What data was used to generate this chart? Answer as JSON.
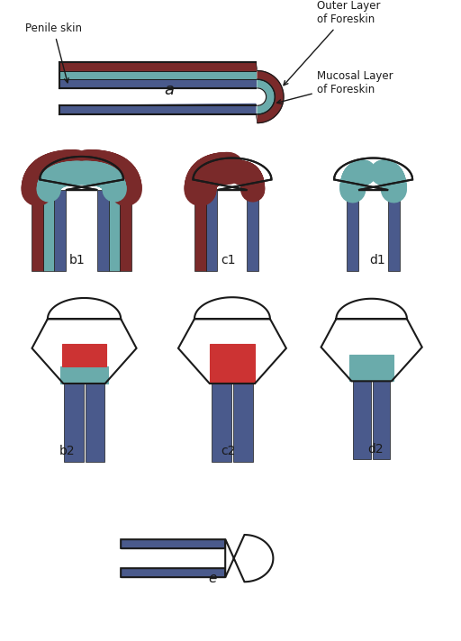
{
  "bg_color": "#ffffff",
  "border_color": "#1a1a1a",
  "blue": "#4a5a8c",
  "dark_red": "#7a2a2a",
  "teal": "#6aabab",
  "red": "#cc3333",
  "labels": {
    "a": "a",
    "b1": "b1",
    "c1": "c1",
    "d1": "d1",
    "b2": "b2",
    "c2": "c2",
    "d2": "d2",
    "e": "e"
  },
  "ann_penile": "Penile skin",
  "ann_outer": "Outer Layer\nof Foreskin",
  "ann_mucosal": "Mucosal Layer\nof Foreskin"
}
